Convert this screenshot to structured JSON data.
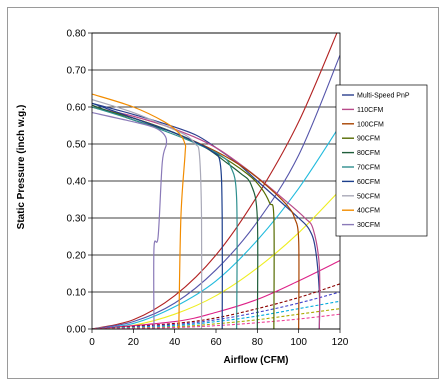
{
  "chart_data": {
    "type": "line",
    "xlabel": "Airflow (CFM)",
    "ylabel": "Static Pressure (inch w.g.)",
    "xlim": [
      0,
      120
    ],
    "ylim": [
      0,
      0.8
    ],
    "x_ticks": [
      "0",
      "20",
      "40",
      "60",
      "80",
      "100",
      "120"
    ],
    "y_ticks": [
      "0.00",
      "0.10",
      "0.20",
      "0.30",
      "0.40",
      "0.50",
      "0.60",
      "0.70",
      "0.80"
    ],
    "grid": "horizontal",
    "legend_position": "right",
    "fan_curves": [
      {
        "name": "Multi-Speed PnP",
        "color": "#2b3f8f",
        "points": [
          [
            0,
            0.61
          ],
          [
            20,
            0.58
          ],
          [
            35,
            0.555
          ],
          [
            50,
            0.525
          ],
          [
            60,
            0.49
          ],
          [
            70,
            0.45
          ],
          [
            80,
            0.4
          ],
          [
            90,
            0.35
          ],
          [
            100,
            0.3
          ],
          [
            105,
            0.27
          ],
          [
            108,
            0.22
          ],
          [
            110,
            0.1
          ],
          [
            110,
            0
          ]
        ]
      },
      {
        "name": "110CFM",
        "color": "#b84a8a",
        "points": [
          [
            0,
            0.6
          ],
          [
            20,
            0.575
          ],
          [
            40,
            0.54
          ],
          [
            60,
            0.49
          ],
          [
            80,
            0.41
          ],
          [
            95,
            0.34
          ],
          [
            103,
            0.3
          ],
          [
            107,
            0.27
          ],
          [
            110,
            0.17
          ],
          [
            110,
            0
          ]
        ]
      },
      {
        "name": "100CFM",
        "color": "#a84300",
        "points": [
          [
            0,
            0.6
          ],
          [
            20,
            0.57
          ],
          [
            40,
            0.53
          ],
          [
            60,
            0.48
          ],
          [
            75,
            0.43
          ],
          [
            88,
            0.37
          ],
          [
            95,
            0.33
          ],
          [
            98,
            0.3
          ],
          [
            100,
            0.24
          ],
          [
            100,
            0
          ]
        ]
      },
      {
        "name": "90CFM",
        "color": "#556b00",
        "points": [
          [
            0,
            0.6
          ],
          [
            20,
            0.57
          ],
          [
            40,
            0.53
          ],
          [
            60,
            0.475
          ],
          [
            75,
            0.42
          ],
          [
            82,
            0.38
          ],
          [
            86,
            0.34
          ],
          [
            88,
            0.3
          ],
          [
            88,
            0
          ]
        ]
      },
      {
        "name": "80CFM",
        "color": "#1f5e3a",
        "points": [
          [
            0,
            0.605
          ],
          [
            20,
            0.565
          ],
          [
            40,
            0.53
          ],
          [
            55,
            0.49
          ],
          [
            65,
            0.45
          ],
          [
            72,
            0.42
          ],
          [
            77,
            0.39
          ],
          [
            80,
            0.3
          ],
          [
            80,
            0
          ]
        ]
      },
      {
        "name": "70CFM",
        "color": "#2e8f8f",
        "points": [
          [
            0,
            0.6
          ],
          [
            20,
            0.565
          ],
          [
            40,
            0.525
          ],
          [
            55,
            0.49
          ],
          [
            62,
            0.47
          ],
          [
            67,
            0.44
          ],
          [
            70,
            0.35
          ],
          [
            70,
            0
          ]
        ]
      },
      {
        "name": "60CFM",
        "color": "#1c3e8c",
        "points": [
          [
            0,
            0.61
          ],
          [
            20,
            0.57
          ],
          [
            40,
            0.53
          ],
          [
            52,
            0.5
          ],
          [
            58,
            0.48
          ],
          [
            62,
            0.45
          ],
          [
            63,
            0.3
          ],
          [
            63,
            0
          ]
        ]
      },
      {
        "name": "50CFM",
        "color": "#a9a9b8",
        "points": [
          [
            0,
            0.62
          ],
          [
            20,
            0.585
          ],
          [
            35,
            0.55
          ],
          [
            45,
            0.525
          ],
          [
            50,
            0.5
          ],
          [
            52,
            0.47
          ],
          [
            53,
            0.3
          ],
          [
            53,
            0
          ]
        ]
      },
      {
        "name": "40CFM",
        "color": "#f28c00",
        "points": [
          [
            0,
            0.635
          ],
          [
            20,
            0.6
          ],
          [
            35,
            0.56
          ],
          [
            42,
            0.53
          ],
          [
            45,
            0.5
          ],
          [
            45,
            0.47
          ],
          [
            43,
            0.3
          ],
          [
            42,
            0
          ]
        ]
      },
      {
        "name": "30CFM",
        "color": "#8a7ab8",
        "points": [
          [
            0,
            0.585
          ],
          [
            20,
            0.56
          ],
          [
            30,
            0.545
          ],
          [
            35,
            0.525
          ],
          [
            36,
            0.5
          ],
          [
            34,
            0.45
          ],
          [
            32,
            0.25
          ],
          [
            30,
            0.22
          ],
          [
            30,
            0
          ]
        ]
      }
    ],
    "system_curves": [
      {
        "color": "#b22222",
        "style": "solid",
        "points": [
          [
            0,
            0
          ],
          [
            20,
            0.025
          ],
          [
            40,
            0.09
          ],
          [
            60,
            0.2
          ],
          [
            80,
            0.36
          ],
          [
            100,
            0.56
          ],
          [
            120,
            0.82
          ]
        ]
      },
      {
        "color": "#5555aa",
        "style": "solid",
        "points": [
          [
            0,
            0
          ],
          [
            20,
            0.02
          ],
          [
            40,
            0.07
          ],
          [
            60,
            0.16
          ],
          [
            80,
            0.29
          ],
          [
            100,
            0.47
          ],
          [
            120,
            0.74
          ]
        ]
      },
      {
        "color": "#22bbdd",
        "style": "solid",
        "points": [
          [
            0,
            0
          ],
          [
            20,
            0.015
          ],
          [
            40,
            0.06
          ],
          [
            60,
            0.13
          ],
          [
            80,
            0.24
          ],
          [
            100,
            0.38
          ],
          [
            120,
            0.55
          ]
        ]
      },
      {
        "color": "#eeee22",
        "style": "solid",
        "points": [
          [
            0,
            0
          ],
          [
            20,
            0.01
          ],
          [
            40,
            0.04
          ],
          [
            60,
            0.09
          ],
          [
            80,
            0.165
          ],
          [
            100,
            0.26
          ],
          [
            120,
            0.375
          ]
        ]
      },
      {
        "color": "#dd2288",
        "style": "solid",
        "points": [
          [
            0,
            0
          ],
          [
            40,
            0.02
          ],
          [
            60,
            0.045
          ],
          [
            80,
            0.08
          ],
          [
            100,
            0.13
          ],
          [
            120,
            0.185
          ]
        ]
      },
      {
        "color": "#8b0000",
        "style": "dashed",
        "points": [
          [
            0,
            0
          ],
          [
            40,
            0.015
          ],
          [
            60,
            0.03
          ],
          [
            80,
            0.055
          ],
          [
            100,
            0.085
          ],
          [
            120,
            0.122
          ]
        ]
      },
      {
        "color": "#4444cc",
        "style": "dashed",
        "points": [
          [
            0,
            0
          ],
          [
            40,
            0.012
          ],
          [
            60,
            0.025
          ],
          [
            80,
            0.045
          ],
          [
            100,
            0.07
          ],
          [
            120,
            0.1
          ]
        ]
      },
      {
        "color": "#00aadd",
        "style": "dashed",
        "points": [
          [
            0,
            0
          ],
          [
            40,
            0.009
          ],
          [
            60,
            0.02
          ],
          [
            80,
            0.035
          ],
          [
            100,
            0.055
          ],
          [
            120,
            0.075
          ]
        ]
      },
      {
        "color": "#aaaa00",
        "style": "dashed",
        "points": [
          [
            0,
            0
          ],
          [
            40,
            0.006
          ],
          [
            60,
            0.014
          ],
          [
            80,
            0.025
          ],
          [
            100,
            0.04
          ],
          [
            120,
            0.055
          ]
        ]
      },
      {
        "color": "#ee4499",
        "style": "dashed",
        "points": [
          [
            0,
            0
          ],
          [
            40,
            0.004
          ],
          [
            60,
            0.009
          ],
          [
            80,
            0.017
          ],
          [
            100,
            0.027
          ],
          [
            120,
            0.04
          ]
        ]
      }
    ]
  }
}
